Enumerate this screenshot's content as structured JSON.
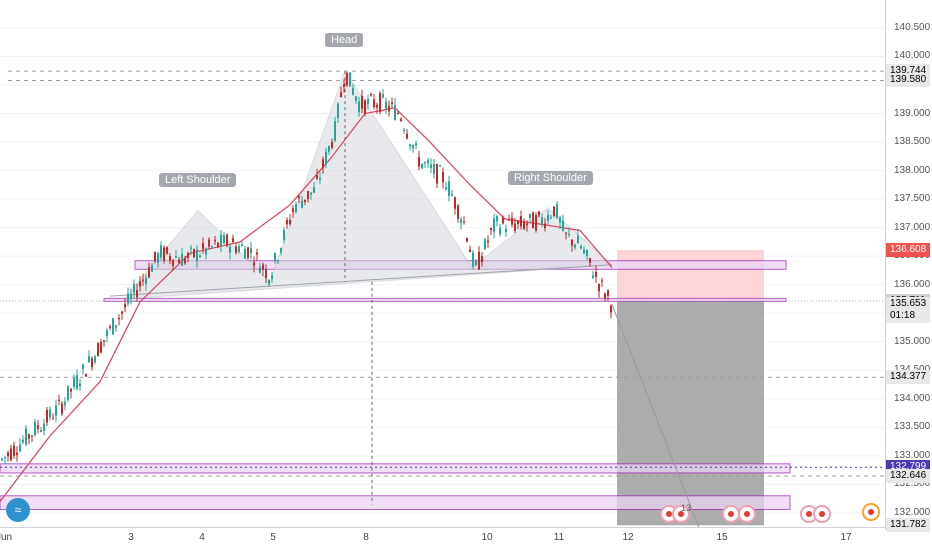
{
  "chart_data": {
    "type": "candlestick",
    "title": "",
    "x_ticks": [
      "Jun",
      "3",
      "4",
      "5",
      "8",
      "10",
      "11",
      "12",
      "15",
      "17"
    ],
    "y_ticks": [
      "140.500",
      "140.000",
      "139.500",
      "139.000",
      "138.500",
      "138.000",
      "137.500",
      "137.000",
      "136.500",
      "136.000",
      "135.500",
      "135.000",
      "134.500",
      "134.000",
      "133.500",
      "133.000",
      "132.500",
      "132.000",
      "131.782"
    ],
    "y_range": [
      131.7,
      140.85
    ],
    "close_path": [
      [
        0,
        132.9
      ],
      [
        60,
        133.85
      ],
      [
        125,
        135.6
      ],
      [
        160,
        136.55
      ],
      [
        185,
        136.45
      ],
      [
        205,
        136.6
      ],
      [
        225,
        136.75
      ],
      [
        250,
        136.6
      ],
      [
        270,
        136.15
      ],
      [
        295,
        137.4
      ],
      [
        315,
        137.65
      ],
      [
        335,
        138.7
      ],
      [
        345,
        139.744
      ],
      [
        360,
        139.15
      ],
      [
        380,
        139.2
      ],
      [
        400,
        139.0
      ],
      [
        420,
        138.15
      ],
      [
        445,
        137.85
      ],
      [
        465,
        137.05
      ],
      [
        475,
        136.25
      ],
      [
        495,
        137.05
      ],
      [
        520,
        137.05
      ],
      [
        545,
        137.15
      ],
      [
        555,
        137.35
      ],
      [
        565,
        136.85
      ],
      [
        580,
        136.7
      ],
      [
        600,
        136.0
      ],
      [
        612,
        135.653
      ]
    ],
    "moving_average": [
      [
        0,
        132.2
      ],
      [
        50,
        133.35
      ],
      [
        100,
        134.3
      ],
      [
        140,
        135.7
      ],
      [
        190,
        136.55
      ],
      [
        240,
        136.75
      ],
      [
        290,
        137.4
      ],
      [
        330,
        138.2
      ],
      [
        365,
        139.0
      ],
      [
        395,
        139.1
      ],
      [
        430,
        138.5
      ],
      [
        470,
        137.75
      ],
      [
        505,
        137.15
      ],
      [
        545,
        137.05
      ],
      [
        580,
        136.95
      ],
      [
        612,
        136.3
      ]
    ],
    "pattern": {
      "labels": [
        "Left Shoulder",
        "Head",
        "Right Shoulder"
      ],
      "points": [
        [
          125,
          135.75
        ],
        [
          150,
          136.3
        ],
        [
          198,
          137.3
        ],
        [
          270,
          136.05
        ],
        [
          345,
          139.744
        ],
        [
          472,
          136.3
        ],
        [
          548,
          137.35
        ],
        [
          612,
          136.35
        ]
      ],
      "neckline": [
        [
          110,
          135.8
        ],
        [
          612,
          136.35
        ]
      ]
    },
    "zones": [
      {
        "name": "upper-zone",
        "low": 136.27,
        "high": 136.42
      },
      {
        "name": "neckline-zone",
        "low": 135.72,
        "high": 135.76
      },
      {
        "name": "support-zone",
        "low": 132.7,
        "high": 132.86
      },
      {
        "name": "lower-zone",
        "low": 132.06,
        "high": 132.3
      }
    ],
    "position": {
      "stop_high": 136.608,
      "entry": 135.711,
      "target": 131.782
    },
    "levels": [
      139.744,
      139.58,
      134.377,
      132.646,
      132.799
    ],
    "price_labels": [
      {
        "name": "high-label",
        "value": 139.744,
        "text": "139.744",
        "color": "#e8e8e8",
        "text_color": "#000000"
      },
      {
        "name": "level-label-139580",
        "value": 139.58,
        "text": "139.580",
        "color": "#e8e8e8",
        "text_color": "#000000"
      },
      {
        "name": "stop-label",
        "value": 136.608,
        "text": "136.608",
        "color": "#ef5350",
        "text_color": "#ffffff"
      },
      {
        "name": "entry-label",
        "value": 135.711,
        "text": "135.711",
        "color": "#cfcfcf",
        "text_color": "#000000"
      },
      {
        "name": "current-price-label",
        "value": 135.653,
        "text": "135.653",
        "color": "#e8e8e8",
        "text_color": "#000000"
      },
      {
        "name": "countdown-label",
        "value": 135.45,
        "text": "01:18",
        "color": "#e8e8e8",
        "text_color": "#000000"
      },
      {
        "name": "level-label-134377",
        "value": 134.377,
        "text": "134.377",
        "color": "#e8e8e8",
        "text_color": "#000000"
      },
      {
        "name": "support-label",
        "value": 132.799,
        "text": "132.799",
        "color": "#4b3bb3",
        "text_color": "#ffffff"
      },
      {
        "name": "level-label-132646",
        "value": 132.646,
        "text": "132.646",
        "color": "#e8e8e8",
        "text_color": "#000000"
      },
      {
        "name": "bottom-label",
        "value": 131.782,
        "text": "131.782",
        "color": "#e8e8e8",
        "text_color": "#000000"
      }
    ],
    "colors": {
      "up": "#26a69a",
      "down": "#c62828",
      "ma": "#e0415a",
      "zone_border": "#9c27b0",
      "zone_fill": "#ead4f2",
      "stop_fill": "#ffcdd2",
      "target_fill": "#9e9e9e"
    }
  },
  "events": {
    "count_label": "13"
  },
  "branding": {
    "logo_icon": "tradingview-logo-icon"
  }
}
